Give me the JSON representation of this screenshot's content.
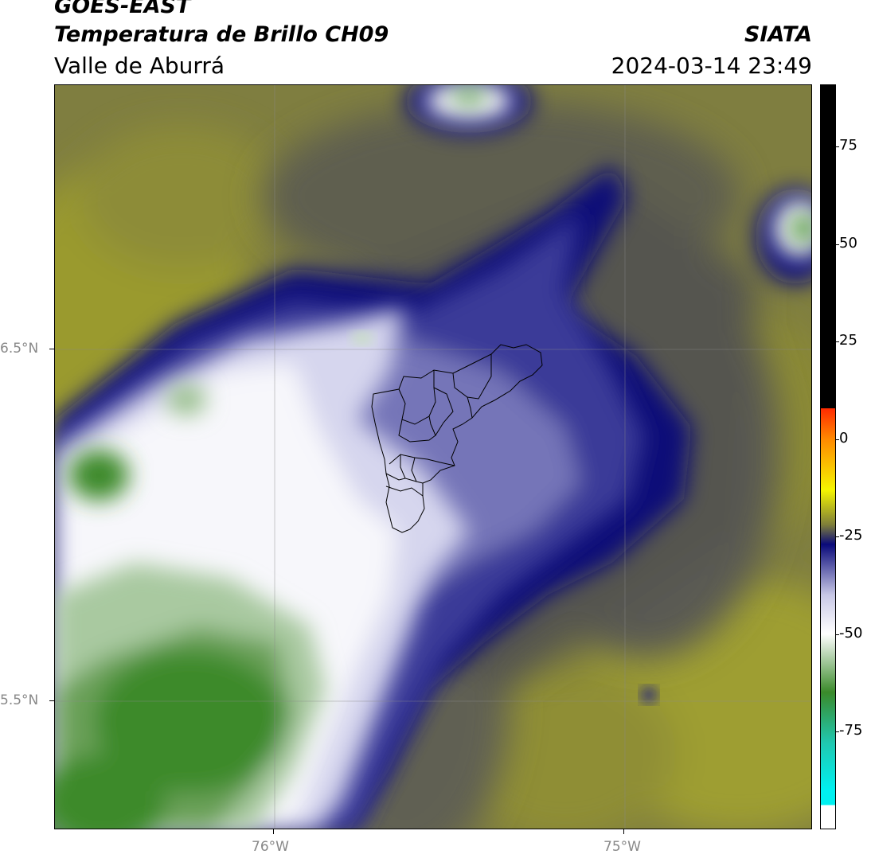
{
  "header": {
    "title": "GOES-EAST",
    "subtitle": "Temperatura de Brillo CH09",
    "region": "Valle de Aburrá",
    "organization": "SIATA",
    "timestamp": "2024-03-14 23:49"
  },
  "map": {
    "lon_labels": [
      "76°W",
      "75°W"
    ],
    "lat_labels": [
      "6.5°N",
      "5.5°N"
    ]
  },
  "colorbar": {
    "ticks": [
      {
        "value": 75,
        "label": "75"
      },
      {
        "value": 50,
        "label": "50"
      },
      {
        "value": 25,
        "label": "25"
      },
      {
        "value": 0,
        "label": "0"
      },
      {
        "value": -25,
        "label": "-25"
      },
      {
        "value": -50,
        "label": "-50"
      },
      {
        "value": -75,
        "label": "-75"
      }
    ],
    "range": [
      -100,
      91
    ],
    "colors": {
      "black": "#000000",
      "red": "#ff2a00",
      "orange": "#ff8a00",
      "yellow": "#f5f500",
      "olive": "#7d7d3a",
      "navy": "#0a0a7a",
      "lavender": "#c8c8e6",
      "white": "#ffffff",
      "green": "#3a8a2a",
      "teal": "#20c8b0",
      "cyan": "#00f0f0"
    }
  }
}
